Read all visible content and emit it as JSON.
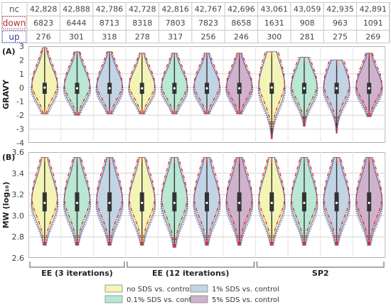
{
  "table": {
    "rows": [
      {
        "label": "nc",
        "values": [
          "42,828",
          "42,888",
          "42,786",
          "42,728",
          "42,816",
          "42,767",
          "42,696",
          "43,061",
          "43,059",
          "42,935",
          "42,891"
        ]
      },
      {
        "label": "down",
        "values": [
          "6823",
          "6444",
          "8713",
          "8318",
          "7803",
          "7823",
          "8658",
          "1631",
          "908",
          "963",
          "1091"
        ]
      },
      {
        "label": "up",
        "values": [
          "276",
          "301",
          "318",
          "278",
          "317",
          "256",
          "246",
          "300",
          "281",
          "275",
          "269"
        ]
      }
    ]
  },
  "colors": {
    "yellow": "#f3f5b7",
    "green": "#b9e8d4",
    "blue": "#c3d4e4",
    "purple": "#cfb3cc",
    "outline_gray": "#7a7a7a",
    "up_line": "#d92b2b",
    "down_line": "#4a55cc",
    "grid": "#d4d4d4",
    "panel_border": "#b0b0b0",
    "box": "#333333",
    "median": "#ffffff"
  },
  "chart_data": [
    {
      "type": "violin",
      "panel_label": "(A)",
      "ylabel": "GRAVY",
      "ylim": [
        -4,
        3
      ],
      "yticks": [
        "-4",
        "-3",
        "-2",
        "-1",
        "0",
        "1",
        "2",
        "3"
      ],
      "grid": true,
      "violins": [
        {
          "fill": "yellow",
          "min": -1.9,
          "max": 2.9,
          "q1": -0.45,
          "median": 0.0,
          "q3": 0.35
        },
        {
          "fill": "green",
          "min": -2.0,
          "max": 2.6,
          "q1": -0.45,
          "median": -0.05,
          "q3": 0.35
        },
        {
          "fill": "blue",
          "min": -1.9,
          "max": 2.6,
          "q1": -0.45,
          "median": -0.05,
          "q3": 0.35
        },
        {
          "fill": "yellow",
          "min": -1.9,
          "max": 2.5,
          "q1": -0.45,
          "median": -0.05,
          "q3": 0.35
        },
        {
          "fill": "green",
          "min": -1.9,
          "max": 2.5,
          "q1": -0.45,
          "median": -0.05,
          "q3": 0.35
        },
        {
          "fill": "blue",
          "min": -1.9,
          "max": 2.5,
          "q1": -0.45,
          "median": -0.05,
          "q3": 0.35
        },
        {
          "fill": "purple",
          "min": -1.9,
          "max": 2.5,
          "q1": -0.45,
          "median": -0.05,
          "q3": 0.35
        },
        {
          "fill": "yellow",
          "min": -3.7,
          "max": 2.6,
          "q1": -0.45,
          "median": 0.0,
          "q3": 0.35
        },
        {
          "fill": "green",
          "min": -2.8,
          "max": 2.2,
          "q1": -0.45,
          "median": -0.05,
          "q3": 0.35
        },
        {
          "fill": "blue",
          "min": -3.3,
          "max": 2.0,
          "q1": -0.45,
          "median": -0.05,
          "q3": 0.35
        },
        {
          "fill": "purple",
          "min": -2.1,
          "max": 2.5,
          "q1": -0.45,
          "median": -0.05,
          "q3": 0.35
        }
      ]
    },
    {
      "type": "violin",
      "panel_label": "(B)",
      "ylabel": "MW (log₁₀)",
      "ylim": [
        2.6,
        3.6
      ],
      "yticks": [
        "2.6",
        "2.8",
        "3.0",
        "3.2",
        "3.4",
        "3.6"
      ],
      "grid": true,
      "violins": [
        {
          "fill": "yellow",
          "min": 2.72,
          "max": 3.55,
          "q1": 3.04,
          "median": 3.12,
          "q3": 3.22
        },
        {
          "fill": "green",
          "min": 2.72,
          "max": 3.55,
          "q1": 3.04,
          "median": 3.12,
          "q3": 3.22
        },
        {
          "fill": "blue",
          "min": 2.72,
          "max": 3.55,
          "q1": 3.04,
          "median": 3.12,
          "q3": 3.22
        },
        {
          "fill": "yellow",
          "min": 2.72,
          "max": 3.55,
          "q1": 3.04,
          "median": 3.12,
          "q3": 3.22
        },
        {
          "fill": "green",
          "min": 2.7,
          "max": 3.55,
          "q1": 3.04,
          "median": 3.12,
          "q3": 3.22
        },
        {
          "fill": "blue",
          "min": 2.72,
          "max": 3.55,
          "q1": 3.04,
          "median": 3.12,
          "q3": 3.22
        },
        {
          "fill": "purple",
          "min": 2.72,
          "max": 3.55,
          "q1": 3.04,
          "median": 3.12,
          "q3": 3.22
        },
        {
          "fill": "yellow",
          "min": 2.72,
          "max": 3.55,
          "q1": 3.04,
          "median": 3.12,
          "q3": 3.22
        },
        {
          "fill": "green",
          "min": 2.72,
          "max": 3.55,
          "q1": 3.04,
          "median": 3.12,
          "q3": 3.22
        },
        {
          "fill": "blue",
          "min": 2.72,
          "max": 3.55,
          "q1": 3.04,
          "median": 3.12,
          "q3": 3.22
        },
        {
          "fill": "purple",
          "min": 2.72,
          "max": 3.55,
          "q1": 3.04,
          "median": 3.12,
          "q3": 3.22
        }
      ]
    }
  ],
  "groups": [
    {
      "label": "EE (3 iterations)",
      "from": 0,
      "to": 2
    },
    {
      "label": "EE (12 iterations)",
      "from": 3,
      "to": 6
    },
    {
      "label": "SP2",
      "from": 7,
      "to": 10
    }
  ],
  "legend": [
    {
      "label": "no SDS vs. control",
      "fill": "yellow"
    },
    {
      "label": "1% SDS vs. control",
      "fill": "blue"
    },
    {
      "label": "0.1% SDS vs. control",
      "fill": "green"
    },
    {
      "label": "5% SDS vs. control",
      "fill": "purple"
    }
  ]
}
